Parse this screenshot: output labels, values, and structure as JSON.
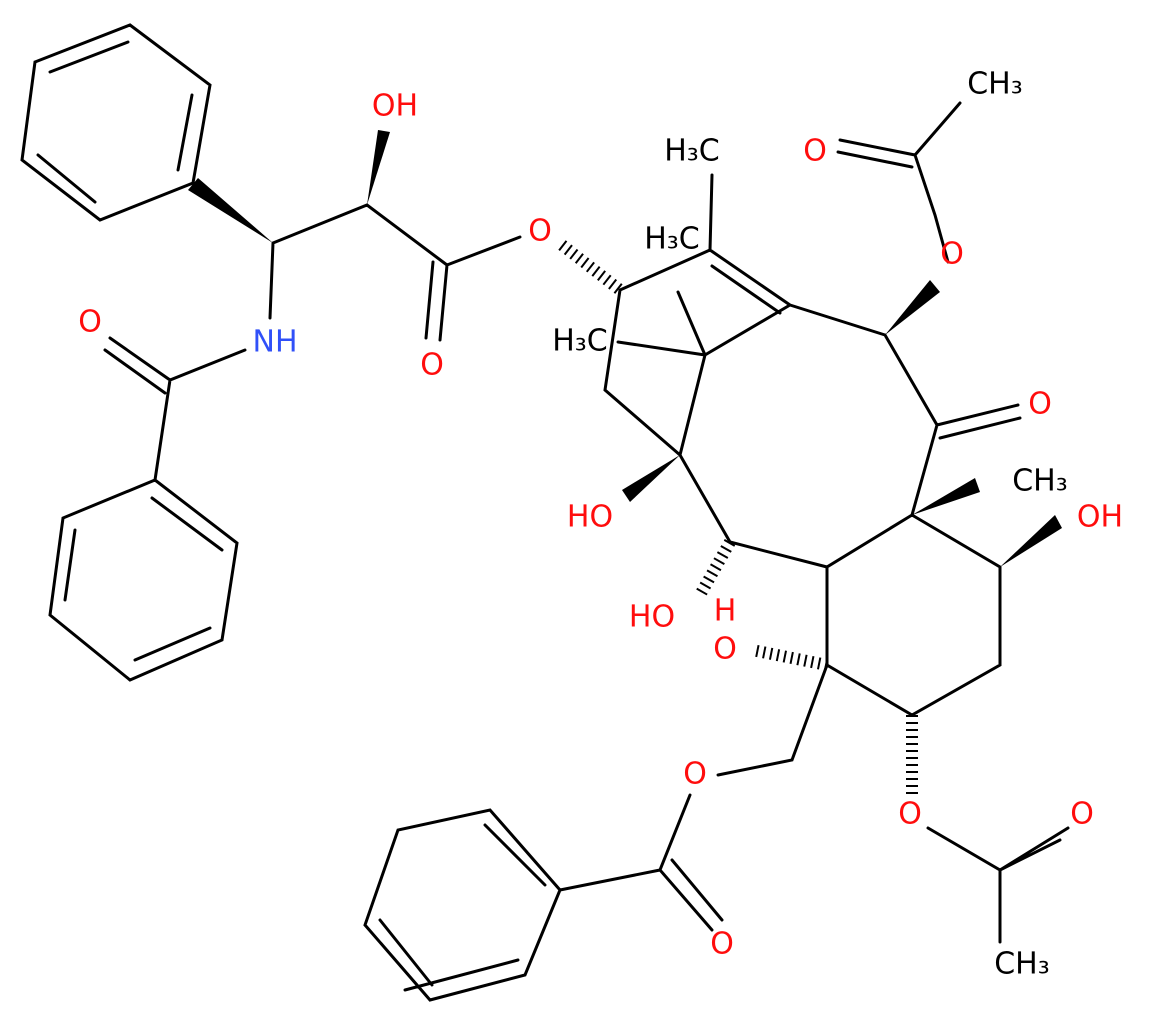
{
  "atoms": [
    {
      "label": "OH"
    },
    {
      "label": "O"
    },
    {
      "label": "O"
    },
    {
      "label": "O"
    },
    {
      "label": "NH"
    },
    {
      "label": "H₃C"
    },
    {
      "label": "H₃C"
    },
    {
      "label": "H₃C"
    },
    {
      "label": "O"
    },
    {
      "label": "CH₃"
    },
    {
      "label": "O"
    },
    {
      "label": "O"
    },
    {
      "label": "CH₃"
    },
    {
      "label": "OH"
    },
    {
      "label": "HO"
    },
    {
      "label": "HO"
    },
    {
      "label": "H"
    },
    {
      "label": "O"
    },
    {
      "label": "O"
    },
    {
      "label": "O"
    },
    {
      "label": "O"
    },
    {
      "label": "O"
    },
    {
      "label": "CH₃"
    }
  ]
}
